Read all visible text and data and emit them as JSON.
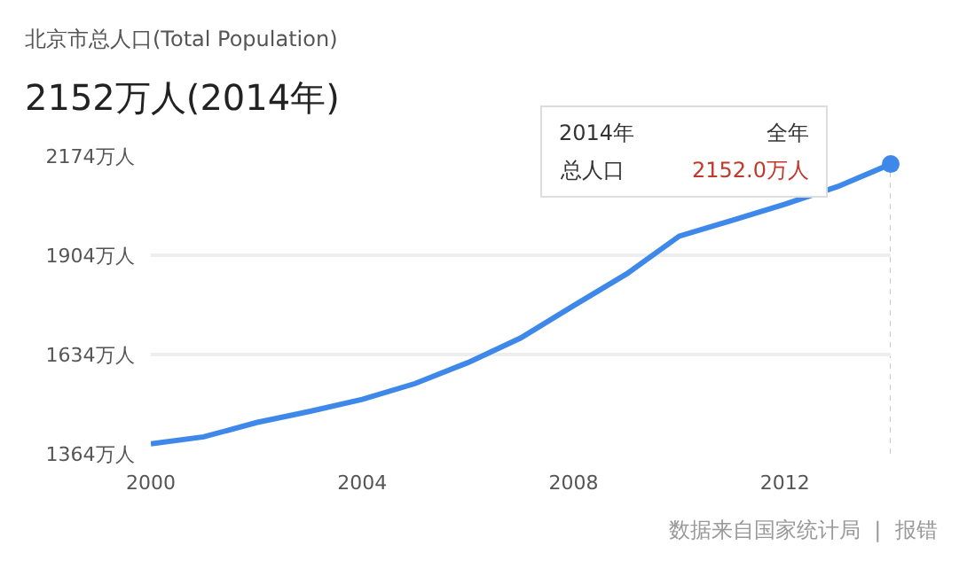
{
  "chart_data": {
    "type": "line",
    "title": "北京市总人口(Total Population)",
    "subtitle": "2152万人(2014年)",
    "x": [
      2000,
      2001,
      2002,
      2003,
      2004,
      2005,
      2006,
      2007,
      2008,
      2009,
      2010,
      2011,
      2012,
      2013,
      2014
    ],
    "series": [
      {
        "color": "#3d88e8",
        "values": [
          1391,
          1410,
          1449,
          1479,
          1512,
          1555,
          1612,
          1679,
          1767,
          1853,
          1956,
          1999,
          2043,
          2091,
          2152
        ]
      }
    ],
    "xlim": [
      2000,
      2014
    ],
    "xticks": [
      2000,
      2004,
      2008,
      2012
    ],
    "ylim": [
      1364,
      2174
    ],
    "yticks": [
      {
        "value": 1364,
        "label": "1364万人"
      },
      {
        "value": 1634,
        "label": "1634万人"
      },
      {
        "value": 1904,
        "label": "1904万人"
      },
      {
        "value": 2174,
        "label": "2174万人"
      }
    ],
    "grid": "y",
    "marker": "none",
    "line_style": "solid",
    "ref_lines": [
      {
        "axis": "x",
        "value": 2014,
        "color": "#c8c8c8",
        "line_style": "dotted"
      }
    ],
    "annotations": [
      "2014年",
      "全年",
      "总人口",
      "2152.0万人",
      "数据来自国家统计局  |  报错"
    ]
  }
}
